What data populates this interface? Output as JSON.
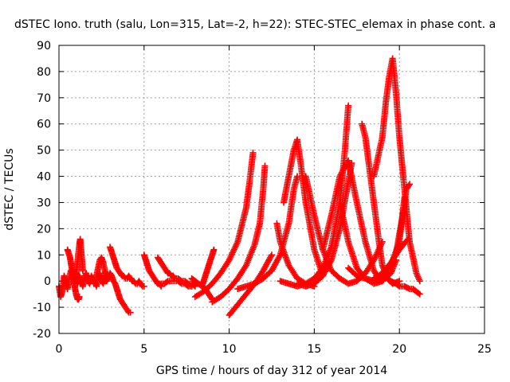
{
  "chart_data": {
    "type": "scatter",
    "title": "dSTEC Iono. truth (salu, Lon=315, Lat=-2, h=22): STEC-STEC_elemax in phase cont. a",
    "xlabel": "GPS time / hours of day 312 of year 2014",
    "ylabel": "dSTEC  / TECUs",
    "xlim": [
      0,
      25
    ],
    "ylim": [
      -20,
      90
    ],
    "xticks": [
      0,
      5,
      10,
      15,
      20,
      25
    ],
    "yticks": [
      -20,
      -10,
      0,
      10,
      20,
      30,
      40,
      50,
      60,
      70,
      80,
      90
    ],
    "grid": true,
    "marker": "+",
    "color": "#ff0000",
    "series": [
      {
        "x": [
          0.0,
          0.1,
          0.2,
          0.3,
          0.4,
          0.5,
          0.6,
          0.7,
          0.8,
          0.9,
          1.0,
          1.1,
          1.2,
          1.3,
          1.4,
          1.5,
          1.6,
          1.7,
          1.8,
          1.9,
          2.0,
          2.1,
          2.2,
          2.3,
          2.4,
          2.5,
          2.6,
          2.7,
          2.8,
          2.9,
          3.0,
          3.1,
          3.2,
          3.3,
          3.4,
          3.5,
          3.6,
          3.7,
          3.8,
          3.9,
          4.0,
          4.1,
          4.2
        ],
        "y": [
          -2,
          -6,
          -4,
          2,
          0,
          -3,
          1,
          4,
          2,
          0,
          3,
          -1,
          2,
          0,
          -2,
          1,
          3,
          0,
          -1,
          2,
          1,
          0,
          -2,
          1,
          3,
          0,
          -1,
          2,
          0,
          1,
          3,
          2,
          0,
          -1,
          -3,
          -5,
          -7,
          -8,
          -9,
          -10,
          -11,
          -12,
          -12
        ]
      },
      {
        "x": [
          0.5,
          0.55,
          0.6,
          0.65,
          0.7,
          0.75,
          0.8,
          0.85,
          0.9,
          0.95,
          1.0,
          1.05,
          1.1,
          1.15,
          1.2
        ],
        "y": [
          12,
          11,
          10,
          9,
          7,
          5,
          3,
          1,
          -1,
          -3,
          -5,
          -6,
          -7,
          -7,
          -6
        ]
      },
      {
        "x": [
          1.0,
          1.05,
          1.1,
          1.15,
          1.2,
          1.25,
          1.3,
          1.35,
          1.4
        ],
        "y": [
          2,
          5,
          8,
          11,
          14,
          16,
          12,
          8,
          4
        ]
      },
      {
        "x": [
          2.2,
          2.3,
          2.4,
          2.5,
          2.6,
          2.7,
          2.8
        ],
        "y": [
          2,
          5,
          8,
          9,
          7,
          4,
          2
        ]
      },
      {
        "x": [
          3.0,
          3.1,
          3.2,
          3.3,
          3.4,
          3.5,
          3.6,
          3.7,
          3.8,
          3.9,
          4.0,
          4.1,
          4.2,
          4.3,
          4.4,
          4.5,
          4.6,
          4.7,
          4.8,
          4.9,
          5.0
        ],
        "y": [
          13,
          11,
          9,
          7,
          5,
          4,
          3,
          2,
          2,
          1,
          1,
          2,
          1,
          0,
          0,
          -1,
          -1,
          0,
          -1,
          -2,
          -2
        ]
      },
      {
        "x": [
          5.0,
          5.1,
          5.2,
          5.3,
          5.4,
          5.5,
          5.6,
          5.7,
          5.8,
          5.9,
          6.0
        ],
        "y": [
          10,
          8,
          6,
          4,
          3,
          2,
          1,
          0,
          -1,
          -1,
          -2
        ]
      },
      {
        "x": [
          5.8,
          5.9,
          6.0,
          6.1,
          6.2,
          6.3,
          6.4,
          6.5,
          6.6,
          6.7,
          6.8,
          6.9,
          7.0,
          7.2,
          7.4,
          7.6,
          7.8,
          8.0
        ],
        "y": [
          9,
          8,
          7,
          6,
          5,
          4,
          3,
          3,
          2,
          2,
          1,
          1,
          1,
          0,
          0,
          -1,
          -1,
          -2
        ]
      },
      {
        "x": [
          6.0,
          6.2,
          6.4,
          6.6,
          6.8,
          7.0,
          7.2,
          7.4,
          7.6,
          7.8
        ],
        "y": [
          -1,
          -1,
          0,
          0,
          0,
          0,
          -1,
          -1,
          -2,
          -2
        ]
      },
      {
        "x": [
          7.8,
          8.0,
          8.2,
          8.4,
          8.6,
          8.8,
          9.0
        ],
        "y": [
          1,
          0,
          -1,
          -2,
          -3,
          -5,
          -7
        ]
      },
      {
        "x": [
          8.4,
          8.5,
          8.6,
          8.7,
          8.8,
          8.9,
          9.0,
          9.1
        ],
        "y": [
          -2,
          0,
          2,
          4,
          6,
          8,
          10,
          12
        ]
      },
      {
        "x": [
          8.0,
          8.5,
          9.0,
          9.5,
          10.0,
          10.5,
          11.0,
          11.2,
          11.4
        ],
        "y": [
          -6,
          -4,
          -1,
          3,
          8,
          15,
          28,
          38,
          49
        ]
      },
      {
        "x": [
          9.0,
          9.5,
          10.0,
          10.5,
          11.0,
          11.5,
          11.8,
          12.0,
          12.1
        ],
        "y": [
          -8,
          -6,
          -3,
          1,
          6,
          14,
          22,
          35,
          44
        ]
      },
      {
        "x": [
          10.0,
          10.5,
          11.0,
          11.5,
          12.0,
          12.5
        ],
        "y": [
          -13,
          -9,
          -5,
          -1,
          4,
          10
        ]
      },
      {
        "x": [
          10.5,
          11.0,
          11.5,
          12.0,
          12.5,
          13.0,
          13.5,
          13.8,
          14.0
        ],
        "y": [
          -3,
          -2,
          -1,
          1,
          4,
          10,
          22,
          35,
          40
        ]
      },
      {
        "x": [
          13.0,
          13.5,
          14.0,
          14.5,
          15.0,
          15.5,
          16.0,
          16.5,
          16.8,
          17.0
        ],
        "y": [
          0,
          -1,
          -2,
          -1,
          1,
          5,
          13,
          30,
          50,
          67
        ]
      },
      {
        "x": [
          13.2,
          13.5,
          13.8,
          14.0,
          14.2,
          14.5,
          15.0,
          15.5
        ],
        "y": [
          30,
          40,
          50,
          54,
          45,
          30,
          12,
          2
        ]
      },
      {
        "x": [
          12.8,
          13.0,
          13.5,
          14.0,
          14.5,
          15.0
        ],
        "y": [
          22,
          15,
          6,
          1,
          -1,
          -2
        ]
      },
      {
        "x": [
          14.0,
          14.5,
          15.0,
          15.5,
          16.0,
          16.5,
          17.0,
          17.2
        ],
        "y": [
          -1,
          -2,
          -1,
          2,
          8,
          20,
          38,
          45
        ]
      },
      {
        "x": [
          14.5,
          15.0,
          15.5,
          16.0,
          16.5,
          17.0,
          17.5,
          18.0,
          18.5,
          19.0
        ],
        "y": [
          40,
          25,
          12,
          4,
          1,
          -1,
          0,
          3,
          8,
          15
        ]
      },
      {
        "x": [
          15.5,
          16.0,
          16.5,
          17.0,
          17.5,
          18.0,
          18.5,
          18.8,
          19.0
        ],
        "y": [
          12,
          25,
          40,
          46,
          30,
          15,
          4,
          1,
          0
        ]
      },
      {
        "x": [
          16.5,
          17.0,
          17.5,
          18.0,
          18.5,
          19.0,
          19.5,
          19.8
        ],
        "y": [
          30,
          15,
          5,
          1,
          -1,
          0,
          3,
          8
        ]
      },
      {
        "x": [
          17.0,
          17.5,
          18.0,
          18.5,
          19.0,
          19.5,
          20.0,
          20.3
        ],
        "y": [
          5,
          2,
          1,
          0,
          2,
          6,
          15,
          32
        ]
      },
      {
        "x": [
          17.8,
          18.0,
          18.2,
          18.5,
          18.8,
          19.0,
          19.3,
          19.6,
          20.0
        ],
        "y": [
          60,
          55,
          45,
          30,
          15,
          6,
          1,
          -1,
          0
        ]
      },
      {
        "x": [
          18.5,
          19.0,
          19.2,
          19.4,
          19.6,
          19.8,
          20.0,
          20.3,
          20.6,
          21.0,
          21.2
        ],
        "y": [
          40,
          55,
          68,
          78,
          85,
          72,
          55,
          35,
          15,
          3,
          0
        ]
      },
      {
        "x": [
          19.5,
          19.8,
          20.0,
          20.3,
          20.6,
          20.8,
          21.0,
          21.2
        ],
        "y": [
          0,
          -1,
          -2,
          -2,
          -3,
          -3,
          -4,
          -5
        ]
      },
      {
        "x": [
          19.8,
          20.0,
          20.2,
          20.4,
          20.6
        ],
        "y": [
          10,
          18,
          25,
          35,
          37
        ]
      },
      {
        "x": [
          18.5,
          19.0,
          19.5,
          20.0,
          20.5
        ],
        "y": [
          1,
          3,
          7,
          12,
          16
        ]
      }
    ]
  }
}
